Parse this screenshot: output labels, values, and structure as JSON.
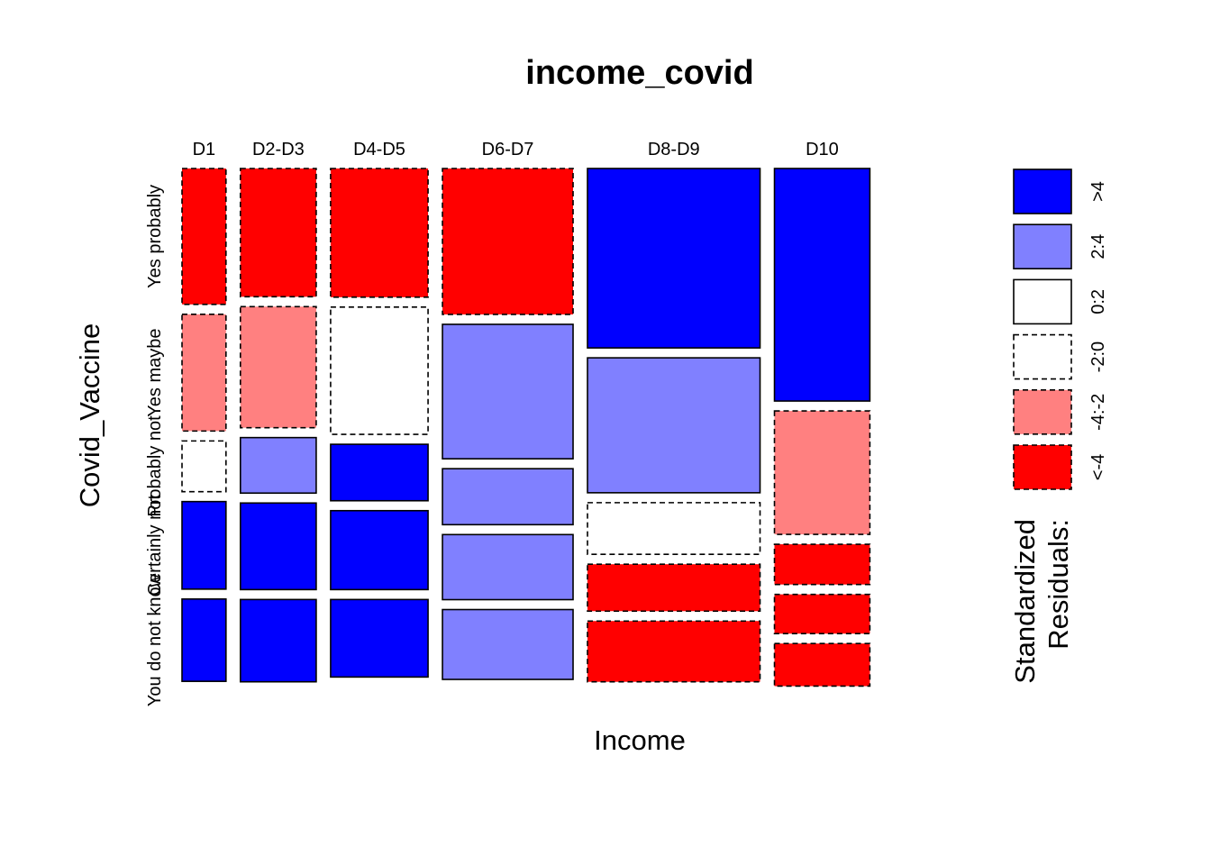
{
  "chart_data": {
    "type": "mosaic",
    "title": "income_covid",
    "xlabel": "Income",
    "ylabel": "Covid_Vaccine",
    "columns": [
      "D1",
      "D2-D3",
      "D4-D5",
      "D6-D7",
      "D8-D9",
      "D10"
    ],
    "column_proportions": [
      0.065,
      0.112,
      0.144,
      0.193,
      0.255,
      0.141
    ],
    "rows": [
      "Yes probably",
      "Yes maybe",
      "Probably not",
      "Certainly not",
      "You do not know"
    ],
    "cells": [
      [
        0.284,
        0.244,
        0.106,
        0.183,
        0.172
      ],
      [
        0.268,
        0.253,
        0.116,
        0.181,
        0.172
      ],
      [
        0.269,
        0.266,
        0.118,
        0.165,
        0.162
      ],
      [
        0.305,
        0.281,
        0.117,
        0.136,
        0.146
      ],
      [
        0.375,
        0.282,
        0.108,
        0.098,
        0.127
      ],
      [
        0.486,
        0.258,
        0.084,
        0.082,
        0.089
      ]
    ],
    "residual_class": [
      [
        "<-4",
        "-4:-2",
        "-2:0",
        ">4",
        ">4"
      ],
      [
        "<-4",
        "-4:-2",
        "2:4",
        ">4",
        ">4"
      ],
      [
        "<-4",
        "-2:0",
        ">4",
        ">4",
        ">4"
      ],
      [
        "<-4",
        "2:4",
        "2:4",
        "2:4",
        "2:4"
      ],
      [
        ">4",
        "2:4",
        "-2:0",
        "<-4",
        "<-4"
      ],
      [
        ">4",
        "-4:-2",
        "<-4",
        "<-4",
        "<-4"
      ]
    ],
    "legend": {
      "title_lines": [
        "Standardized",
        "Residuals:"
      ],
      "classes": [
        {
          "label": ">4",
          "color": "#0000ff",
          "dashed": false
        },
        {
          "label": "2:4",
          "color": "#8080ff",
          "dashed": false
        },
        {
          "label": "0:2",
          "color": "#ffffff",
          "dashed": false
        },
        {
          "label": "-2:0",
          "color": "#ffffff",
          "dashed": true
        },
        {
          "label": "-4:-2",
          "color": "#ff8080",
          "dashed": true
        },
        {
          "label": "<-4",
          "color": "#ff0000",
          "dashed": true
        }
      ],
      "placement": "right"
    }
  }
}
